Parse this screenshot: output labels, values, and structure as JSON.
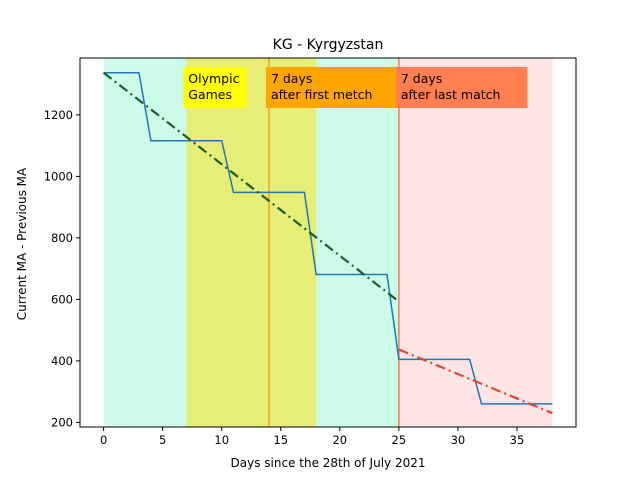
{
  "chart_data": {
    "type": "line",
    "title": "KG - Kyrgyzstan",
    "xlabel": "Days since the 28th of July 2021",
    "ylabel": "Current MA - Previous MA",
    "xlim": [
      -2,
      40
    ],
    "ylim": [
      185,
      1385
    ],
    "xticks": [
      0,
      5,
      10,
      15,
      20,
      25,
      30,
      35
    ],
    "yticks": [
      200,
      400,
      600,
      800,
      1000,
      1200
    ],
    "grid": false,
    "shaded_regions": [
      {
        "x0": 0,
        "x1": 7,
        "color": "#ccfbea"
      },
      {
        "x0": 7,
        "x1": 18,
        "color": "#e6ee78"
      },
      {
        "x0": 18,
        "x1": 25,
        "color": "#ccfbea"
      },
      {
        "x0": 25,
        "x1": 38,
        "color": "#fde5e5"
      }
    ],
    "vertical_lines": [
      {
        "x": 14,
        "color": "#ff9f1a"
      },
      {
        "x": 25,
        "color": "#f17a5a"
      }
    ],
    "annotations": [
      {
        "lines": [
          "Olympic",
          "Games"
        ],
        "x": 7,
        "color": "#ffff00"
      },
      {
        "lines": [
          "7 days",
          "after first metch"
        ],
        "x": 14,
        "color": "#ffa500"
      },
      {
        "lines": [
          "7 days",
          "after last match"
        ],
        "x": 25,
        "color": "#ff7f50"
      }
    ],
    "series": [
      {
        "style": "solid",
        "color": "#1f77b4",
        "x": [
          0,
          3,
          4,
          10,
          11,
          17,
          18,
          24,
          25,
          31,
          32,
          38
        ],
        "y": [
          1337,
          1337,
          1116,
          1116,
          948,
          948,
          681,
          681,
          405,
          405,
          260,
          260
        ]
      },
      {
        "style": "dashdot",
        "color": "#1a5e2a",
        "x": [
          0,
          25
        ],
        "y": [
          1337,
          593
        ]
      },
      {
        "style": "dashdot",
        "color": "#e0452b",
        "x": [
          25,
          38
        ],
        "y": [
          437,
          230
        ]
      }
    ]
  }
}
